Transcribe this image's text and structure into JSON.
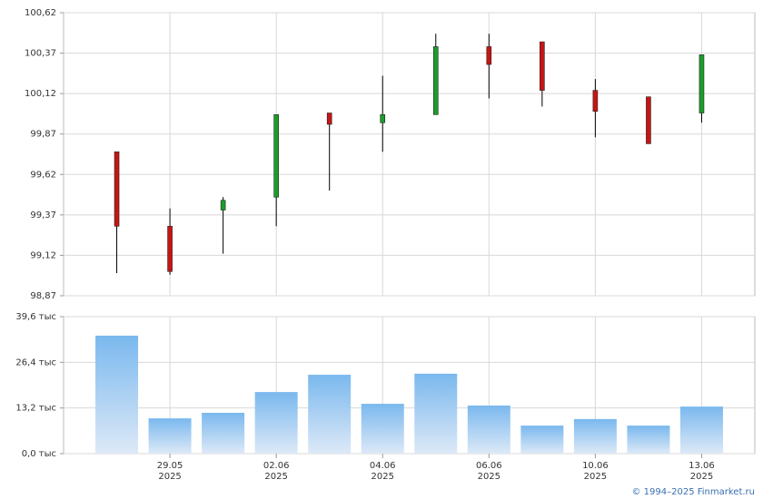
{
  "chart_data": [
    {
      "type": "candlestick",
      "categories": [
        null,
        "29.05",
        null,
        "02.06",
        null,
        "04.06",
        null,
        "06.06",
        null,
        "10.06",
        null,
        "13.06"
      ],
      "open": [
        99.76,
        99.3,
        99.4,
        99.48,
        100.0,
        99.94,
        99.99,
        100.41,
        100.44,
        100.14,
        100.1,
        100.0
      ],
      "high": [
        99.76,
        99.41,
        99.48,
        99.99,
        100.0,
        100.23,
        100.49,
        100.49,
        100.44,
        100.21,
        100.1,
        100.36
      ],
      "low": [
        99.01,
        99.0,
        99.13,
        99.3,
        99.52,
        99.76,
        99.99,
        100.09,
        100.04,
        99.85,
        99.81,
        99.94
      ],
      "close": [
        99.3,
        99.02,
        99.46,
        99.99,
        99.93,
        99.99,
        100.41,
        100.3,
        100.14,
        100.01,
        99.81,
        100.36
      ],
      "up_color": "#1a9e2a",
      "down_color": "#c81414",
      "ylim": [
        98.87,
        100.62
      ],
      "yticks": [
        {
          "value": 98.87,
          "label": "98,87"
        },
        {
          "value": 99.12,
          "label": "99,12"
        },
        {
          "value": 99.37,
          "label": "99,37"
        },
        {
          "value": 99.62,
          "label": "99,62"
        },
        {
          "value": 99.87,
          "label": "99,87"
        },
        {
          "value": 100.12,
          "label": "100,12"
        },
        {
          "value": 100.37,
          "label": "100,37"
        },
        {
          "value": 100.62,
          "label": "100,62"
        }
      ],
      "grid": true
    },
    {
      "type": "bar",
      "categories": [
        null,
        "29.05",
        null,
        "02.06",
        null,
        "04.06",
        null,
        "06.06",
        null,
        "10.06",
        null,
        "13.06"
      ],
      "x_sublabels": [
        null,
        "2025",
        null,
        "2025",
        null,
        "2025",
        null,
        "2025",
        null,
        "2025",
        null,
        "2025"
      ],
      "values": [
        34.1,
        10.2,
        11.8,
        17.8,
        22.8,
        14.4,
        23.1,
        13.9,
        8.1,
        10.0,
        8.1,
        13.6
      ],
      "color": "#7ab8ee",
      "ylim": [
        0,
        39.6
      ],
      "yticks": [
        {
          "value": 0,
          "label": "0,0 тыс"
        },
        {
          "value": 13.2,
          "label": "13,2 тыс"
        },
        {
          "value": 26.4,
          "label": "26,4 тыс"
        },
        {
          "value": 39.6,
          "label": "39,6 тыс"
        }
      ],
      "grid": true
    }
  ],
  "footer": "© 1994–2025 Finmarket.ru"
}
